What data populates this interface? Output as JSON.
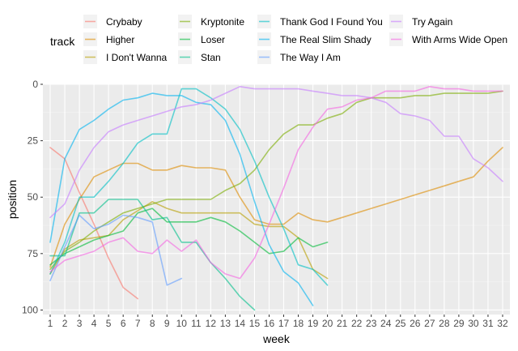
{
  "chart_data": {
    "type": "line",
    "xlabel": "week",
    "ylabel": "position",
    "legend_title": "track",
    "legend_position": "top",
    "grid": true,
    "x_ticks": [
      1,
      2,
      3,
      4,
      5,
      6,
      7,
      8,
      9,
      10,
      11,
      12,
      13,
      14,
      15,
      16,
      17,
      18,
      19,
      20,
      21,
      22,
      23,
      24,
      25,
      26,
      27,
      28,
      29,
      30,
      31,
      32
    ],
    "y_ticks": [
      0,
      25,
      50,
      75,
      100
    ],
    "xlim": [
      0.5,
      32.5
    ],
    "ylim": [
      0,
      102
    ],
    "y_reversed": true,
    "series": [
      {
        "name": "Crybaby",
        "color": "#F8766D",
        "x": [
          1,
          2,
          3,
          4,
          5,
          6,
          7
        ],
        "y": [
          28,
          33,
          48,
          62,
          77,
          90,
          95
        ]
      },
      {
        "name": "Higher",
        "color": "#DE8C00",
        "x": [
          1,
          2,
          3,
          4,
          5,
          6,
          7,
          8,
          9,
          10,
          11,
          12,
          13,
          14,
          15,
          16,
          17,
          18,
          19,
          20,
          21,
          22,
          23,
          24,
          25,
          26,
          27,
          28,
          29,
          30,
          31,
          32
        ],
        "y": [
          81,
          62,
          51,
          41,
          38,
          35,
          35,
          38,
          38,
          36,
          37,
          37,
          38,
          50,
          60,
          62,
          62,
          57,
          60,
          61,
          59,
          57,
          55,
          53,
          51,
          49,
          47,
          45,
          43,
          41,
          34,
          28
        ]
      },
      {
        "name": "I Don't Wanna",
        "color": "#B79F00",
        "x": [
          1,
          2,
          3,
          4,
          5,
          6,
          7,
          8,
          9,
          10,
          11,
          12,
          13,
          14,
          15,
          16,
          17,
          18,
          19,
          20
        ],
        "y": [
          84,
          73,
          69,
          68,
          67,
          60,
          56,
          52,
          55,
          57,
          57,
          57,
          57,
          57,
          62,
          63,
          63,
          68,
          82,
          86
        ]
      },
      {
        "name": "Kryptonite",
        "color": "#7CAE00",
        "x": [
          1,
          2,
          3,
          4,
          5,
          6,
          7,
          8,
          9,
          10,
          11,
          12,
          13,
          14,
          15,
          16,
          17,
          18,
          19,
          20,
          21,
          22,
          23,
          24,
          25,
          26,
          27,
          28,
          29,
          30,
          31,
          32
        ],
        "y": [
          82,
          74,
          70,
          65,
          61,
          57,
          55,
          53,
          51,
          51,
          51,
          51,
          47,
          44,
          38,
          29,
          22,
          18,
          18,
          15,
          13,
          8,
          6,
          6,
          6,
          5,
          5,
          4,
          4,
          4,
          4,
          3
        ]
      },
      {
        "name": "Loser",
        "color": "#00BA38",
        "x": [
          1,
          2,
          3,
          4,
          5,
          6,
          7,
          8,
          9,
          10,
          11,
          12,
          13,
          14,
          15,
          16,
          17,
          18,
          19,
          20
        ],
        "y": [
          80,
          75,
          72,
          69,
          67,
          65,
          57,
          55,
          61,
          61,
          61,
          59,
          61,
          65,
          70,
          75,
          74,
          68,
          72,
          70
        ]
      },
      {
        "name": "Stan",
        "color": "#00C08B",
        "x": [
          1,
          2,
          3,
          4,
          5,
          6,
          7,
          8,
          9,
          10,
          11,
          12,
          13,
          14,
          15
        ],
        "y": [
          76,
          76,
          57,
          57,
          51,
          51,
          51,
          60,
          59,
          70,
          70,
          79,
          86,
          94,
          100
        ]
      },
      {
        "name": "Thank God I Found You",
        "color": "#00BFC4",
        "x": [
          1,
          2,
          3,
          4,
          5,
          6,
          7,
          8,
          9,
          10,
          11,
          12,
          13,
          14,
          15,
          16,
          17,
          18,
          19,
          20
        ],
        "y": [
          84,
          70,
          50,
          50,
          43,
          35,
          26,
          22,
          22,
          2,
          2,
          6,
          11,
          20,
          34,
          50,
          64,
          80,
          82,
          89
        ]
      },
      {
        "name": "The Real Slim Shady",
        "color": "#00B4F0",
        "x": [
          1,
          2,
          3,
          4,
          5,
          6,
          7,
          8,
          9,
          10,
          11,
          12,
          13,
          14,
          15,
          16,
          17,
          18,
          19
        ],
        "y": [
          70,
          33,
          20,
          16,
          11,
          7,
          6,
          4,
          5,
          5,
          8,
          9,
          16,
          31,
          52,
          71,
          83,
          88,
          98
        ]
      },
      {
        "name": "The Way I Am",
        "color": "#619CFF",
        "x": [
          1,
          2,
          3,
          4,
          5,
          6,
          7,
          8,
          9,
          10
        ],
        "y": [
          87,
          72,
          58,
          64,
          62,
          58,
          59,
          61,
          89,
          86
        ]
      },
      {
        "name": "Try Again",
        "color": "#C77CFF",
        "x": [
          1,
          2,
          3,
          4,
          5,
          6,
          7,
          8,
          9,
          10,
          11,
          12,
          13,
          14,
          15,
          16,
          17,
          18,
          19,
          20,
          21,
          22,
          23,
          24,
          25,
          26,
          27,
          28,
          29,
          30,
          31,
          32
        ],
        "y": [
          59,
          53,
          38,
          28,
          21,
          18,
          16,
          14,
          12,
          10,
          9,
          7,
          4,
          1,
          2,
          2,
          2,
          2,
          3,
          4,
          5,
          5,
          6,
          8,
          13,
          14,
          16,
          23,
          23,
          33,
          37,
          43
        ]
      },
      {
        "name": "With Arms Wide Open",
        "color": "#F564E3",
        "x": [
          1,
          2,
          3,
          4,
          5,
          6,
          7,
          8,
          9,
          10,
          11,
          12,
          13,
          14,
          15,
          16,
          17,
          18,
          19,
          20,
          21,
          22,
          23,
          24,
          25,
          26,
          27,
          28,
          29,
          30,
          31,
          32
        ],
        "y": [
          83,
          78,
          76,
          74,
          70,
          68,
          74,
          75,
          69,
          74,
          69,
          79,
          84,
          86,
          77,
          62,
          46,
          29,
          19,
          11,
          10,
          7,
          6,
          3,
          3,
          3,
          1,
          2,
          2,
          3,
          3,
          3
        ]
      }
    ]
  }
}
